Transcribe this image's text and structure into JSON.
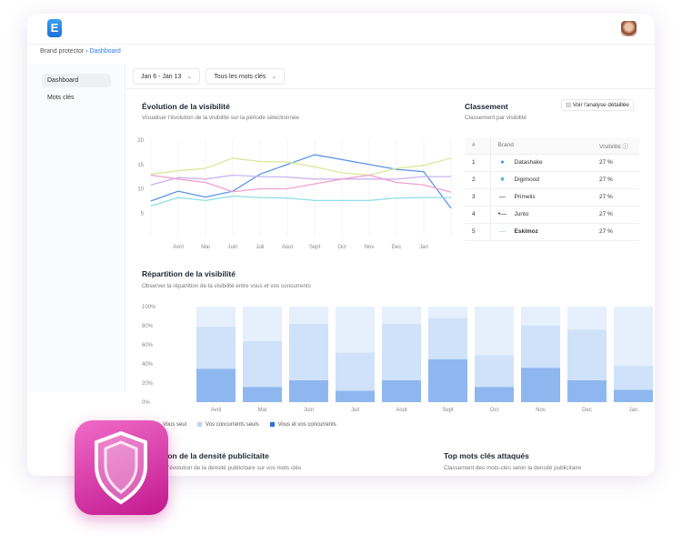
{
  "app": {
    "logo_letter": "E"
  },
  "breadcrumb": [
    "Brand protector",
    "Dashboard"
  ],
  "sidebar": {
    "items": [
      {
        "label": "Dashboard",
        "active": true
      },
      {
        "label": "Mots clés",
        "active": false
      }
    ]
  },
  "filters": {
    "date": "Jan 6 - Jan 13",
    "keywords": "Tous les mots clés"
  },
  "visibility": {
    "title": "Évolution de la visibilité",
    "subtitle": "Visualiser l'évolution de la visibilité sur la période sélectionnée"
  },
  "ranking": {
    "title": "Classement",
    "subtitle": "Classement par visibilité",
    "button": "Voir l'analyse détaillée",
    "headers": [
      "#",
      "Brand",
      "Visibilité"
    ],
    "rows": [
      {
        "rank": "1",
        "brand": "Datashake",
        "value": "27 %",
        "color": "#2d8be6",
        "icon": "●"
      },
      {
        "rank": "2",
        "brand": "Digimood",
        "value": "27 %",
        "color": "#4fc3b0",
        "icon": "■"
      },
      {
        "rank": "3",
        "brand": "Primelis",
        "value": "27 %",
        "color": "#333333",
        "icon": "—"
      },
      {
        "rank": "4",
        "brand": "Junto",
        "value": "27 %",
        "color": "#333333",
        "icon": "•—"
      },
      {
        "rank": "5",
        "brand": "Eskimoz",
        "value": "27 %",
        "color": "#7fc6e8",
        "icon": "—"
      }
    ]
  },
  "repartition": {
    "title": "Répartition de la visibilité",
    "subtitle": "Observer la répartition de la visibilité entre vous et vos concurrents"
  },
  "legend": [
    {
      "label": "Vous seul",
      "color": "#e6f0fc"
    },
    {
      "label": "Vos concurrents seuls",
      "color": "#b9d6f7"
    },
    {
      "label": "Vous et vos concurrents",
      "color": "#2f6fd6"
    }
  ],
  "bottom": {
    "left_title": "Évolution de la densité publicitaite",
    "left_subtitle": "Observer l'évolution de la densité publicitaire sur vos mots clés",
    "right_title": "Top mots clés attaqués",
    "right_subtitle": "Classement des mots-clés selon la densité publicitaire"
  },
  "chart_data": [
    {
      "type": "line",
      "x": [
        "",
        "Avril",
        "Mai",
        "Juin",
        "Juil",
        "Aout",
        "Sept",
        "Oct",
        "Nov",
        "Dec",
        "Jan",
        ""
      ],
      "ylim": [
        0,
        20
      ],
      "yticks": [
        5,
        10,
        15,
        20
      ],
      "grid": true,
      "series": [
        {
          "color": "#5b95e6",
          "values": [
            7.5,
            9.5,
            8.3,
            9.5,
            13,
            15,
            17,
            16,
            15,
            14,
            13.5,
            6
          ]
        },
        {
          "color": "#d8ea9a",
          "values": [
            13,
            13.7,
            14.2,
            16.3,
            15.6,
            15.5,
            14.5,
            13.3,
            12.8,
            14.2,
            14.8,
            16.3
          ]
        },
        {
          "color": "#c9b4ee",
          "values": [
            10.8,
            12.3,
            12,
            12.8,
            12.5,
            12.4,
            12,
            12,
            12,
            12,
            12.5,
            12.5
          ]
        },
        {
          "color": "#f0a0cf",
          "values": [
            12.8,
            12,
            11.3,
            9.4,
            10,
            10,
            11,
            12,
            12.8,
            11.3,
            10.8,
            9.3
          ]
        },
        {
          "color": "#8fdde8",
          "values": [
            6.5,
            8.2,
            7.6,
            8.5,
            8.2,
            8.1,
            7.6,
            7.6,
            7.6,
            8.1,
            8.2,
            8.2
          ]
        }
      ]
    },
    {
      "type": "bar",
      "stacked": true,
      "categories": [
        "Avril",
        "Mai",
        "Juin",
        "Juil",
        "Aout",
        "Sept",
        "Oct",
        "Nov",
        "Dec",
        "Jan"
      ],
      "ylim": [
        0,
        100
      ],
      "yticks": [
        "0%",
        "20%",
        "40%",
        "60%",
        "80%",
        "100%"
      ],
      "series": [
        {
          "name": "Vous et vos concurrents",
          "values": [
            35,
            16,
            23,
            12,
            23,
            45,
            16,
            36,
            23,
            13
          ]
        },
        {
          "name": "Vos concurrents seuls",
          "values": [
            44,
            48,
            59,
            40,
            59,
            43,
            33,
            44,
            53,
            25
          ]
        },
        {
          "name": "Vous seul",
          "values": [
            21,
            36,
            18,
            48,
            18,
            12,
            51,
            20,
            24,
            62
          ]
        }
      ]
    }
  ]
}
